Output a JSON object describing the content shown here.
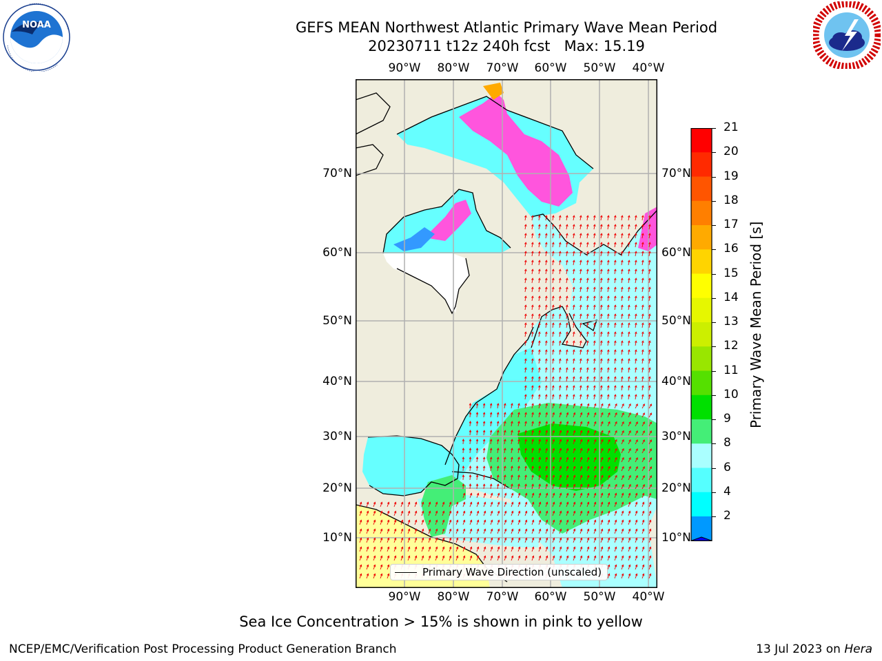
{
  "header": {
    "title_line1": "GEFS MEAN Northwest Atlantic Primary Wave Mean Period",
    "title_line2": "20230711 t12z 240h fcst   Max: 15.19"
  },
  "logos": {
    "noaa": {
      "text": "NOAA",
      "ring_text": "NATIONAL OCEANIC AND ATMOSPHERIC ADMINISTRATION · U.S. DEPARTMENT OF COMMERCE"
    },
    "nws": {
      "ring_text": "NATIONAL WEATHER SERVICE"
    }
  },
  "map": {
    "lon_labels": [
      "90°W",
      "80°W",
      "70°W",
      "60°W",
      "50°W",
      "40°W"
    ],
    "lat_labels": [
      "70°N",
      "60°N",
      "50°N",
      "40°N",
      "30°N",
      "20°N",
      "10°N"
    ],
    "legend_label": "Primary Wave Direction (unscaled)"
  },
  "colorbar": {
    "label": "Primary Wave Mean Period [s]",
    "ticks": [
      "21",
      "20",
      "19",
      "18",
      "17",
      "16",
      "15",
      "14",
      "13",
      "12",
      "11",
      "10",
      "9",
      "8",
      "6",
      "4",
      "2"
    ],
    "colors": [
      "#ff0000",
      "#ff2a00",
      "#ff5500",
      "#ff7f00",
      "#ffaa00",
      "#ffd400",
      "#ffff00",
      "#e6f700",
      "#ccef00",
      "#99e600",
      "#55e000",
      "#00e000",
      "#44ee77",
      "#aaffff",
      "#55ffff",
      "#00ffff",
      "#0099ff"
    ],
    "extend_color": "#0000ff"
  },
  "colors": {
    "land": "#efeddd",
    "ocean_low": "#66ffff",
    "ocean_mid": "#aaffff",
    "ocean_green": "#44ee77",
    "ocean_bright_green": "#00e000",
    "ice_pink": "#ff55dd",
    "arrow": "#ee0000",
    "grid": "#b0b0b0"
  },
  "footer": {
    "note": "Sea Ice Concentration > 15% is shown in pink to yellow",
    "left": "NCEP/EMC/Verification Post Processing Product Generation Branch",
    "right_date": "13 Jul 2023 on",
    "right_host": "Hera"
  }
}
